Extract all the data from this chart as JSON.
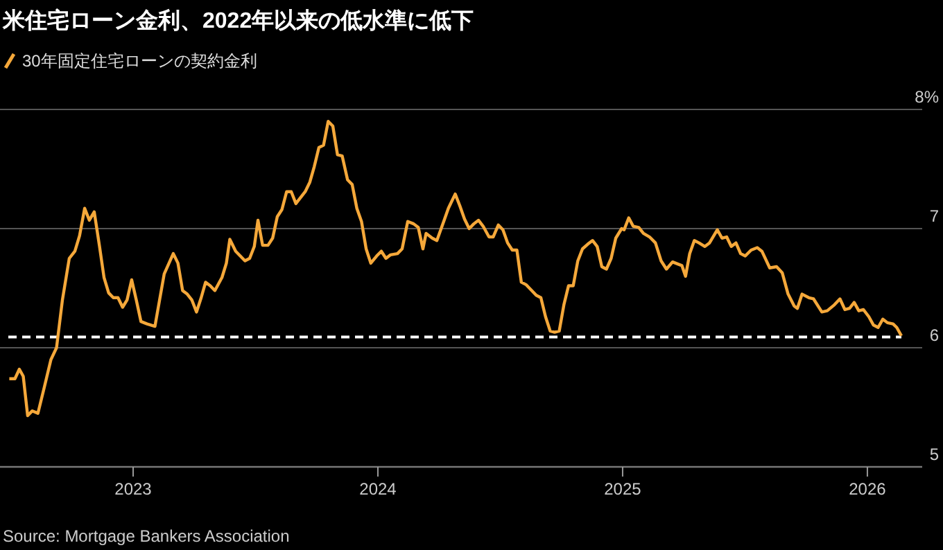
{
  "chart_data": {
    "type": "line",
    "title": "米住宅ローン金利、2022年以来の低水準に低下",
    "series": [
      {
        "name": "30年固定住宅ローンの契約金利",
        "color": "#f5a83a",
        "x": [
          2022.494,
          2022.517,
          2022.535,
          2022.551,
          2022.569,
          2022.588,
          2022.611,
          2022.636,
          2022.664,
          2022.687,
          2022.711,
          2022.739,
          2022.762,
          2022.781,
          2022.802,
          2022.821,
          2022.841,
          2022.862,
          2022.881,
          2022.9,
          2022.919,
          2022.938,
          2022.957,
          2022.975,
          2022.994,
          2023.013,
          2023.032,
          2023.057,
          2023.089,
          2023.108,
          2023.127,
          2023.164,
          2023.183,
          2023.202,
          2023.221,
          2023.24,
          2023.259,
          2023.278,
          2023.296,
          2023.315,
          2023.334,
          2023.363,
          2023.381,
          2023.395,
          2023.419,
          2023.457,
          2023.476,
          2023.495,
          2023.51,
          2023.529,
          2023.551,
          2023.57,
          2023.589,
          2023.608,
          2023.627,
          2023.646,
          2023.665,
          2023.703,
          2023.722,
          2023.74,
          2023.759,
          2023.778,
          2023.797,
          2023.816,
          2023.835,
          2023.854,
          2023.876,
          2023.895,
          2023.914,
          2023.933,
          2023.952,
          2023.971,
          2023.995,
          2024.014,
          2024.033,
          2024.052,
          2024.08,
          2024.099,
          2024.122,
          2024.146,
          2024.165,
          2024.184,
          2024.197,
          2024.222,
          2024.241,
          2024.269,
          2024.288,
          2024.316,
          2024.335,
          2024.354,
          2024.373,
          2024.392,
          2024.411,
          2024.43,
          2024.454,
          2024.471,
          2024.492,
          2024.511,
          2024.53,
          2024.549,
          2024.568,
          2024.586,
          2024.605,
          2024.624,
          2024.647,
          2024.666,
          2024.685,
          2024.704,
          2024.722,
          2024.741,
          2024.76,
          2024.779,
          2024.798,
          2024.817,
          2024.836,
          2024.858,
          2024.877,
          2024.896,
          2024.915,
          2024.934,
          2024.953,
          2024.972,
          2024.996,
          2025.006,
          2025.025,
          2025.043,
          2025.066,
          2025.085,
          2025.11,
          2025.134,
          2025.157,
          2025.179,
          2025.204,
          2025.229,
          2025.242,
          2025.257,
          2025.274,
          2025.293,
          2025.312,
          2025.336,
          2025.355,
          2025.387,
          2025.406,
          2025.425,
          2025.444,
          2025.463,
          2025.482,
          2025.501,
          2025.525,
          2025.55,
          2025.569,
          2025.601,
          2025.629,
          2025.652,
          2025.676,
          2025.701,
          2025.714,
          2025.733,
          2025.761,
          2025.78,
          2025.814,
          2025.836,
          2025.865,
          2025.888,
          2025.908,
          2025.927,
          2025.946,
          2025.965,
          2025.984,
          2026.006,
          2026.025,
          2026.044,
          2026.063,
          2026.082,
          2026.105,
          2026.12,
          2026.139
        ],
        "values": [
          5.74,
          5.74,
          5.82,
          5.76,
          5.43,
          5.47,
          5.45,
          5.66,
          5.9,
          6.0,
          6.4,
          6.75,
          6.81,
          6.94,
          7.17,
          7.07,
          7.14,
          6.86,
          6.59,
          6.46,
          6.42,
          6.42,
          6.34,
          6.4,
          6.57,
          6.4,
          6.22,
          6.2,
          6.18,
          6.4,
          6.62,
          6.79,
          6.71,
          6.48,
          6.45,
          6.4,
          6.3,
          6.42,
          6.55,
          6.52,
          6.48,
          6.59,
          6.71,
          6.91,
          6.81,
          6.73,
          6.75,
          6.85,
          7.07,
          6.86,
          6.86,
          6.92,
          7.1,
          7.16,
          7.31,
          7.31,
          7.21,
          7.31,
          7.39,
          7.52,
          7.68,
          7.7,
          7.9,
          7.86,
          7.62,
          7.61,
          7.41,
          7.37,
          7.17,
          7.06,
          6.83,
          6.71,
          6.77,
          6.81,
          6.75,
          6.78,
          6.79,
          6.83,
          7.06,
          7.04,
          7.01,
          6.83,
          6.96,
          6.92,
          6.9,
          7.06,
          7.17,
          7.29,
          7.19,
          7.08,
          7.0,
          7.04,
          7.07,
          7.02,
          6.93,
          6.93,
          7.03,
          6.99,
          6.88,
          6.82,
          6.82,
          6.55,
          6.53,
          6.49,
          6.44,
          6.42,
          6.26,
          6.14,
          6.13,
          6.14,
          6.36,
          6.52,
          6.52,
          6.73,
          6.83,
          6.87,
          6.9,
          6.85,
          6.68,
          6.66,
          6.75,
          6.92,
          7.0,
          6.99,
          7.09,
          7.02,
          7.01,
          6.96,
          6.93,
          6.88,
          6.73,
          6.66,
          6.72,
          6.7,
          6.69,
          6.6,
          6.79,
          6.9,
          6.88,
          6.85,
          6.88,
          6.99,
          6.92,
          6.93,
          6.85,
          6.88,
          6.79,
          6.77,
          6.82,
          6.84,
          6.81,
          6.67,
          6.68,
          6.63,
          6.45,
          6.35,
          6.33,
          6.45,
          6.42,
          6.41,
          6.3,
          6.31,
          6.36,
          6.41,
          6.32,
          6.33,
          6.38,
          6.31,
          6.32,
          6.26,
          6.19,
          6.17,
          6.24,
          6.21,
          6.2,
          6.17,
          6.1
        ]
      }
    ],
    "xlim": [
      2022.456,
      2026.224
    ],
    "xticks": [
      2023,
      2024,
      2025,
      2026
    ],
    "ylim": [
      5,
      8
    ],
    "yticks": [
      5,
      6,
      7,
      {
        "value": 8,
        "label": "8%"
      }
    ],
    "grid": "y",
    "legend": "top left",
    "line_style": "solid",
    "marker": "none",
    "ref_lines": [
      {
        "axis": "y",
        "value": 6.09,
        "color": "#ffffff",
        "line_style": "dashed"
      }
    ],
    "annotations": [
      "Source: Mortgage Bankers Association"
    ]
  }
}
